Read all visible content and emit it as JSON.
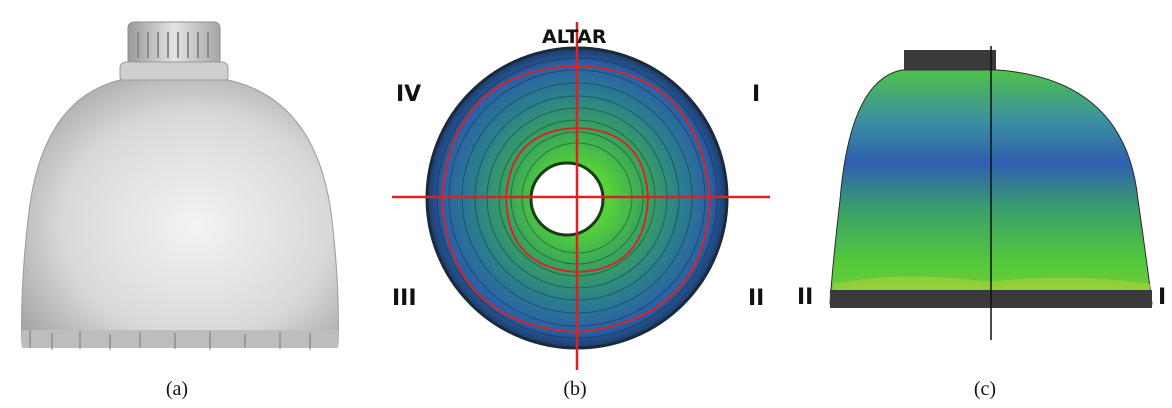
{
  "captions": {
    "a": "(a)",
    "b": "(b)",
    "c": "(c)"
  },
  "panel_b": {
    "top_label": "ALTAR",
    "quadrants": {
      "top_left": "IV",
      "top_right": "I",
      "bottom_left": "III",
      "bottom_right": "II"
    }
  },
  "panel_c": {
    "left_label": "II",
    "right_label": "I"
  },
  "colors": {
    "scan_gray": "#d6d6d6",
    "heat_blue": "#2f5fb0",
    "heat_green": "#53c93a",
    "heat_teal": "#2a9a8a",
    "section_red": "#e02020",
    "rim_dark": "#3a3a3a"
  }
}
